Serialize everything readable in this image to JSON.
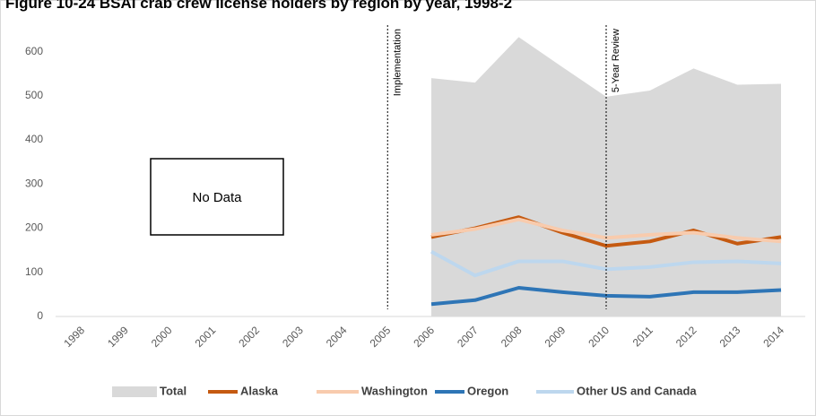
{
  "chart_data": {
    "type": "line",
    "title": "Figure 10-24 BSAI crab crew license holders by region by year, 1998-2",
    "categories": [
      "1998",
      "1999",
      "2000",
      "2001",
      "2002",
      "2003",
      "2004",
      "2005",
      "2006",
      "2007",
      "2008",
      "2009",
      "2010",
      "2011",
      "2012",
      "2013",
      "2014"
    ],
    "series": [
      {
        "name": "Total",
        "color": "#d9d9d9",
        "kind": "area",
        "values": [
          null,
          null,
          null,
          null,
          null,
          null,
          null,
          null,
          540,
          530,
          633,
          565,
          498,
          512,
          562,
          525,
          527
        ]
      },
      {
        "name": "Alaska",
        "color": "#c55a11",
        "values": [
          null,
          null,
          null,
          null,
          null,
          null,
          null,
          null,
          180,
          200,
          225,
          190,
          160,
          170,
          195,
          165,
          180
        ]
      },
      {
        "name": "Washington",
        "color": "#f8cbad",
        "values": [
          null,
          null,
          null,
          null,
          null,
          null,
          null,
          null,
          185,
          198,
          220,
          195,
          178,
          185,
          190,
          178,
          170
        ]
      },
      {
        "name": "Oregon",
        "color": "#2e75b6",
        "values": [
          null,
          null,
          null,
          null,
          null,
          null,
          null,
          null,
          28,
          37,
          65,
          55,
          47,
          45,
          55,
          55,
          60
        ]
      },
      {
        "name": "Other US and Canada",
        "color": "#bdd7ee",
        "values": [
          null,
          null,
          null,
          null,
          null,
          null,
          null,
          null,
          147,
          93,
          125,
          125,
          107,
          112,
          123,
          125,
          120
        ]
      }
    ],
    "ylim": [
      0,
      650
    ],
    "yticks": [
      0,
      100,
      200,
      300,
      400,
      500,
      600
    ],
    "annotations": [
      {
        "label": "Implementation",
        "x": "2005"
      },
      {
        "label": "5-Year Review",
        "x": "2010"
      }
    ],
    "no_data_label": "No Data",
    "legend": "bottom"
  }
}
